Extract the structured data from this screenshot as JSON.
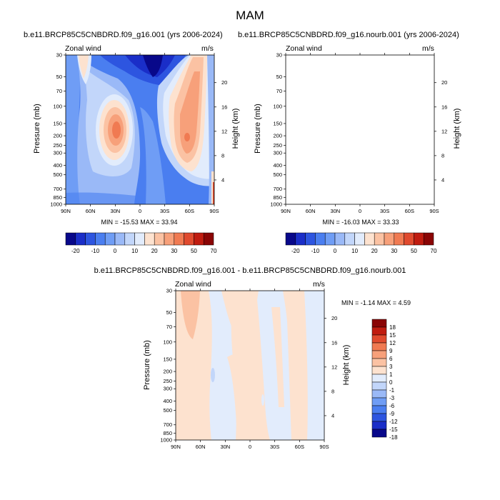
{
  "page": {
    "title": "MAM"
  },
  "panels": [
    {
      "id": "top-left",
      "title": "b.e11.BRCP85C5CNBDRD.f09_g16.001 (yrs 2006-2024)",
      "left_label": "Zonal wind",
      "right_label": "m/s",
      "y_label": "Pressure (mb)",
      "y2_label": "Height (km)",
      "stats": "MIN = -15.53  MAX =  33.94"
    },
    {
      "id": "top-right",
      "title": "b.e11.BRCP85C5CNBDRD.f09_g16.nourb.001 (yrs 2006-2024)",
      "left_label": "Zonal wind",
      "right_label": "m/s",
      "y_label": "Pressure (mb)",
      "y2_label": "Height (km)",
      "stats": "MIN = -16.03  MAX =  33.33"
    },
    {
      "id": "bottom",
      "title": "b.e11.BRCP85C5CNBDRD.f09_g16.001 - b.e11.BRCP85C5CNBDRD.f09_g16.nourb.001",
      "left_label": "Zonal wind",
      "right_label": "m/s",
      "y_label": "Pressure (mb)",
      "y2_label": "Height (km)",
      "stats": "MIN =  -1.14  MAX =   4.59"
    }
  ],
  "chart_data": [
    {
      "type": "heatmap",
      "title": "b.e11.BRCP85C5CNBDRD.f09_g16.001 (yrs 2006-2024)",
      "xlabel": "",
      "ylabel": "Pressure (mb)",
      "y2label": "Height (km)",
      "x_ticks": [
        "90N",
        "60N",
        "30N",
        "0",
        "30S",
        "60S",
        "90S"
      ],
      "y_ticks": [
        "30",
        "50",
        "70",
        "100",
        "150",
        "200",
        "250",
        "300",
        "400",
        "500",
        "700",
        "850",
        "1000"
      ],
      "y2_ticks": [
        "20",
        "16",
        "12",
        "8",
        "4"
      ],
      "levels": [
        -20,
        -15,
        -10,
        -5,
        0,
        5,
        10,
        15,
        20,
        25,
        30,
        40,
        50,
        60,
        70
      ],
      "min": -15.53,
      "max": 33.94
    },
    {
      "type": "heatmap",
      "title": "b.e11.BRCP85C5CNBDRD.f09_g16.nourb.001 (yrs 2006-2024)",
      "xlabel": "",
      "ylabel": "Pressure (mb)",
      "y2label": "Height (km)",
      "x_ticks": [
        "90N",
        "60N",
        "30N",
        "0",
        "30S",
        "60S",
        "90S"
      ],
      "y_ticks": [
        "30",
        "50",
        "70",
        "100",
        "150",
        "200",
        "250",
        "300",
        "400",
        "500",
        "700",
        "850",
        "1000"
      ],
      "y2_ticks": [
        "20",
        "16",
        "12",
        "8",
        "4"
      ],
      "levels": [
        -20,
        -15,
        -10,
        -5,
        0,
        5,
        10,
        15,
        20,
        25,
        30,
        40,
        50,
        60,
        70
      ],
      "min": -16.03,
      "max": 33.33
    },
    {
      "type": "heatmap",
      "title": "b.e11.BRCP85C5CNBDRD.f09_g16.001 - b.e11.BRCP85C5CNBDRD.f09_g16.nourb.001",
      "xlabel": "",
      "ylabel": "Pressure (mb)",
      "y2label": "Height (km)",
      "x_ticks": [
        "90N",
        "60N",
        "30N",
        "0",
        "30S",
        "60S",
        "90S"
      ],
      "y_ticks": [
        "30",
        "50",
        "70",
        "100",
        "150",
        "200",
        "250",
        "300",
        "400",
        "500",
        "700",
        "850",
        "1000"
      ],
      "y2_ticks": [
        "20",
        "16",
        "12",
        "8",
        "4"
      ],
      "levels": [
        -18,
        -15,
        -12,
        -9,
        -6,
        -3,
        -1,
        0,
        1,
        3,
        6,
        9,
        12,
        15,
        18
      ],
      "min": -1.14,
      "max": 4.59
    }
  ],
  "colorbars": {
    "top_labels": [
      "-20",
      "-10",
      "0",
      "10",
      "20",
      "30",
      "50",
      "70"
    ],
    "bottom_labels": [
      "18",
      "15",
      "12",
      "9",
      "6",
      "3",
      "1",
      "0",
      "-1",
      "-3",
      "-6",
      "-9",
      "-12",
      "-15",
      "-18"
    ],
    "palette": [
      "#08088a",
      "#1a2ec8",
      "#2d55e0",
      "#4a7ef0",
      "#6f9df5",
      "#9ab9f7",
      "#c2d6fa",
      "#e2ecfc",
      "#fde2cf",
      "#fbc2a3",
      "#f7a07a",
      "#f07a52",
      "#e04a2e",
      "#c01c10",
      "#8a0505"
    ]
  }
}
